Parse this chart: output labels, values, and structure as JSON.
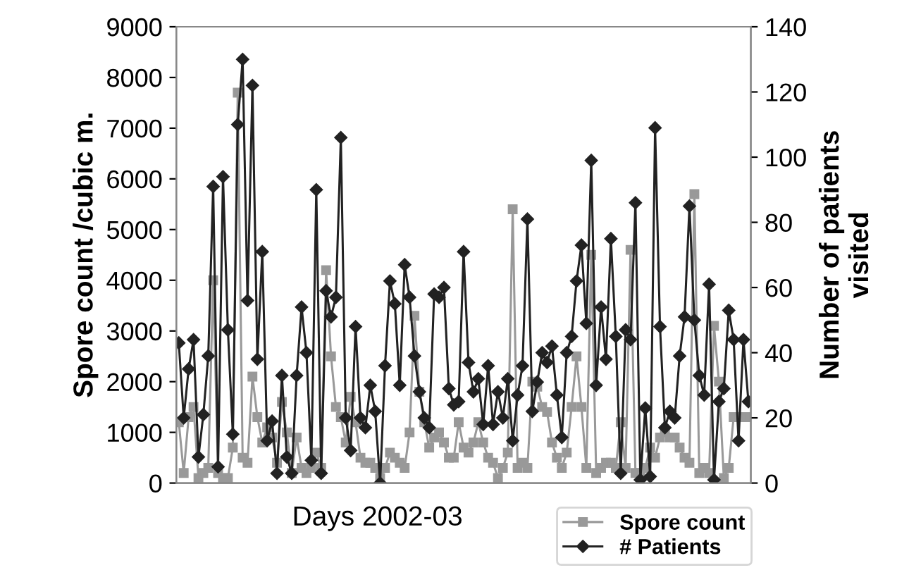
{
  "chart_data": {
    "type": "line",
    "xlabel": "Days 2002-03",
    "ylabel": "Spore count /cubic m.",
    "y2label": "Number of patients\nvisited",
    "categories": [
      null,
      null,
      null,
      null,
      null,
      null,
      null,
      null,
      null,
      null,
      null,
      null,
      null,
      null,
      null,
      null,
      null,
      null,
      null,
      null,
      null,
      null,
      null,
      null,
      null,
      null,
      null,
      null,
      null,
      null,
      null,
      null,
      null,
      null,
      null,
      null,
      null,
      null,
      null,
      null,
      null,
      null,
      null,
      null,
      null,
      null,
      null,
      null,
      null,
      null,
      null,
      null,
      null,
      null,
      null,
      null,
      null,
      null,
      null,
      null,
      null,
      null,
      null,
      null,
      null,
      null,
      null,
      null,
      null,
      null,
      null,
      null,
      null,
      null,
      null,
      null,
      null,
      null,
      null,
      null,
      null,
      null,
      null,
      null,
      null,
      null,
      null,
      null,
      null,
      null,
      null,
      null,
      null,
      null,
      null,
      null,
      null,
      null,
      null,
      null,
      null,
      null,
      null,
      null,
      null,
      null,
      null,
      null,
      null,
      null,
      null,
      null,
      null,
      null,
      null,
      null,
      null
    ],
    "series": [
      {
        "name": "Spore count",
        "color": "#999999",
        "marker": "square",
        "values": [
          1200,
          200,
          1300,
          1500,
          100,
          200,
          300,
          4000,
          200,
          100,
          100,
          700,
          7700,
          500,
          400,
          2100,
          1300,
          800,
          1100,
          900,
          400,
          1600,
          1000,
          200,
          900,
          300,
          200,
          300,
          600,
          300,
          4200,
          2500,
          1500,
          1300,
          800,
          1700,
          1200,
          500,
          400,
          400,
          300,
          100,
          300,
          600,
          500,
          400,
          300,
          1000,
          3300,
          1800,
          1200,
          700,
          900,
          1000,
          800,
          500,
          500,
          1200,
          700,
          600,
          800,
          1200,
          800,
          500,
          400,
          100,
          300,
          600,
          5400,
          300,
          400,
          300,
          2000,
          1900,
          1500,
          1400,
          800,
          500,
          300,
          600,
          1500,
          2500,
          1500,
          300,
          4500,
          200,
          300,
          400,
          400,
          300,
          1200,
          300,
          4600,
          200,
          200,
          300,
          700,
          500,
          900,
          1000,
          900,
          900,
          700,
          500,
          400,
          5700,
          200,
          300,
          200,
          3100,
          2000,
          100,
          300,
          1300,
          1300,
          1300,
          1300
        ]
      },
      {
        "name": "# Patients",
        "color": "#222222",
        "marker": "diamond",
        "axis": "y2",
        "values": [
          43,
          20,
          35,
          44,
          8,
          21,
          39,
          91,
          5,
          94,
          47,
          15,
          110,
          130,
          56,
          122,
          38,
          71,
          13,
          19,
          3,
          33,
          8,
          3,
          33,
          54,
          40,
          7,
          90,
          3,
          59,
          51,
          57,
          106,
          20,
          10,
          48,
          20,
          17,
          30,
          22,
          0,
          36,
          62,
          55,
          30,
          67,
          57,
          39,
          28,
          20,
          17,
          58,
          57,
          60,
          29,
          24,
          25,
          71,
          37,
          28,
          32,
          18,
          36,
          18,
          28,
          20,
          32,
          13,
          27,
          36,
          81,
          22,
          31,
          40,
          37,
          42,
          27,
          14,
          40,
          45,
          62,
          73,
          49,
          99,
          30,
          54,
          38,
          75,
          45,
          3,
          47,
          44,
          86,
          1,
          23,
          2,
          109,
          48,
          17,
          22,
          20,
          39,
          51,
          85,
          50,
          33,
          27,
          61,
          1,
          25,
          29,
          53,
          44,
          13,
          44,
          25
        ]
      }
    ],
    "ylim": [
      0,
      9000
    ],
    "yticks": [
      0,
      1000,
      2000,
      3000,
      4000,
      5000,
      6000,
      7000,
      8000,
      9000
    ],
    "y2lim": [
      0,
      140
    ],
    "y2ticks": [
      0,
      20,
      40,
      60,
      80,
      100,
      120,
      140
    ],
    "grid": false,
    "legend": "bottom right",
    "line_style": "solid"
  }
}
